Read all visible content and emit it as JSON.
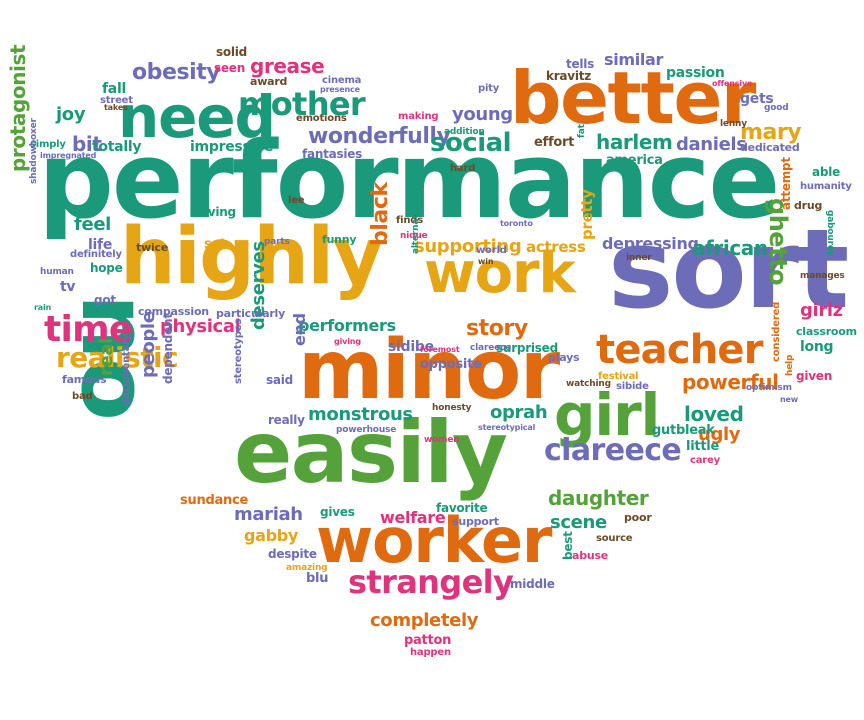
{
  "palette": {
    "teal": "#1a9a7a",
    "orange": "#e06a10",
    "gold": "#e6a514",
    "purple": "#6d6cb8",
    "green": "#55a23a",
    "magenta": "#e0337e",
    "brown": "#6b4a2a",
    "gray": "#555555"
  },
  "words": [
    {
      "text": "performance",
      "color": "teal"
    },
    {
      "text": "sort",
      "color": "purple"
    },
    {
      "text": "highly",
      "color": "gold"
    },
    {
      "text": "minor",
      "color": "orange"
    },
    {
      "text": "easily",
      "color": "green"
    },
    {
      "text": "better",
      "color": "orange"
    },
    {
      "text": "worker",
      "color": "orange"
    },
    {
      "text": "no",
      "color": "teal"
    },
    {
      "text": "need",
      "color": "teal"
    },
    {
      "text": "work",
      "color": "gold"
    },
    {
      "text": "girl",
      "color": "green"
    },
    {
      "text": "teacher",
      "color": "orange"
    },
    {
      "text": "time",
      "color": "magenta"
    },
    {
      "text": "mother",
      "color": "teal"
    },
    {
      "text": "strangely",
      "color": "magenta"
    },
    {
      "text": "clareece",
      "color": "purple"
    },
    {
      "text": "realistic",
      "color": "gold"
    },
    {
      "text": "wonderfully",
      "color": "purple"
    },
    {
      "text": "obesity",
      "color": "purple"
    },
    {
      "text": "grease",
      "color": "magenta"
    },
    {
      "text": "harlem",
      "color": "teal"
    },
    {
      "text": "daniels",
      "color": "purple"
    },
    {
      "text": "mary",
      "color": "gold"
    },
    {
      "text": "social",
      "color": "teal"
    },
    {
      "text": "young",
      "color": "purple"
    },
    {
      "text": "protagonist",
      "color": "green"
    },
    {
      "text": "ghetto",
      "color": "green"
    },
    {
      "text": "supporting",
      "color": "gold"
    },
    {
      "text": "depressing",
      "color": "purple"
    },
    {
      "text": "african",
      "color": "teal"
    },
    {
      "text": "black",
      "color": "orange"
    },
    {
      "text": "story",
      "color": "orange"
    },
    {
      "text": "performers",
      "color": "teal"
    },
    {
      "text": "sidibe",
      "color": "purple"
    },
    {
      "text": "physical",
      "color": "magenta"
    },
    {
      "text": "deserves",
      "color": "teal"
    },
    {
      "text": "end",
      "color": "purple"
    },
    {
      "text": "monstrous",
      "color": "teal"
    },
    {
      "text": "oprah",
      "color": "teal"
    },
    {
      "text": "powerful",
      "color": "orange"
    },
    {
      "text": "loved",
      "color": "teal"
    },
    {
      "text": "people",
      "color": "purple"
    },
    {
      "text": "real",
      "color": "green"
    },
    {
      "text": "daughter",
      "color": "green"
    },
    {
      "text": "scene",
      "color": "teal"
    },
    {
      "text": "welfare",
      "color": "magenta"
    },
    {
      "text": "mariah",
      "color": "purple"
    },
    {
      "text": "gabby",
      "color": "gold"
    },
    {
      "text": "completely",
      "color": "orange"
    },
    {
      "text": "ugly",
      "color": "orange"
    },
    {
      "text": "girlz",
      "color": "magenta"
    },
    {
      "text": "feel",
      "color": "teal"
    },
    {
      "text": "joy",
      "color": "teal"
    },
    {
      "text": "bit",
      "color": "purple"
    },
    {
      "text": "totally",
      "color": "teal"
    },
    {
      "text": "impressive",
      "color": "teal"
    },
    {
      "text": "fall",
      "color": "teal"
    },
    {
      "text": "seen",
      "color": "magenta"
    },
    {
      "text": "solid",
      "color": "brown"
    },
    {
      "text": "similar",
      "color": "purple"
    },
    {
      "text": "tells",
      "color": "purple"
    },
    {
      "text": "kravitz",
      "color": "brown"
    },
    {
      "text": "passion",
      "color": "teal"
    },
    {
      "text": "gets",
      "color": "purple"
    },
    {
      "text": "effort",
      "color": "brown"
    },
    {
      "text": "america",
      "color": "teal"
    },
    {
      "text": "dedicated",
      "color": "purple"
    },
    {
      "text": "able",
      "color": "teal"
    },
    {
      "text": "attempt",
      "color": "orange"
    },
    {
      "text": "life",
      "color": "purple"
    },
    {
      "text": "twice",
      "color": "brown"
    },
    {
      "text": "set",
      "color": "gold"
    },
    {
      "text": "funny",
      "color": "teal"
    },
    {
      "text": "actress",
      "color": "gold"
    },
    {
      "text": "pretty",
      "color": "gold"
    },
    {
      "text": "hope",
      "color": "teal"
    },
    {
      "text": "tv",
      "color": "purple"
    },
    {
      "text": "got",
      "color": "purple"
    },
    {
      "text": "compassion",
      "color": "purple"
    },
    {
      "text": "particularly",
      "color": "purple"
    },
    {
      "text": "opposite",
      "color": "purple"
    },
    {
      "text": "surprised",
      "color": "teal"
    },
    {
      "text": "plays",
      "color": "purple"
    },
    {
      "text": "said",
      "color": "purple"
    },
    {
      "text": "really",
      "color": "purple"
    },
    {
      "text": "classroom",
      "color": "teal"
    },
    {
      "text": "long",
      "color": "teal"
    },
    {
      "text": "given",
      "color": "magenta"
    },
    {
      "text": "considered",
      "color": "orange"
    },
    {
      "text": "festival",
      "color": "gold"
    },
    {
      "text": "sibide",
      "color": "purple"
    },
    {
      "text": "famous",
      "color": "purple"
    },
    {
      "text": "bad",
      "color": "brown"
    },
    {
      "text": "documentary",
      "color": "purple"
    },
    {
      "text": "dependent",
      "color": "purple"
    },
    {
      "text": "stereotypes",
      "color": "purple"
    },
    {
      "text": "little",
      "color": "teal"
    },
    {
      "text": "carey",
      "color": "magenta"
    },
    {
      "text": "gut",
      "color": "teal"
    },
    {
      "text": "bleak",
      "color": "teal"
    },
    {
      "text": "sundance",
      "color": "orange"
    },
    {
      "text": "gives",
      "color": "teal"
    },
    {
      "text": "favorite",
      "color": "teal"
    },
    {
      "text": "support",
      "color": "purple"
    },
    {
      "text": "poor",
      "color": "brown"
    },
    {
      "text": "source",
      "color": "brown"
    },
    {
      "text": "abuse",
      "color": "magenta"
    },
    {
      "text": "best",
      "color": "teal"
    },
    {
      "text": "despite",
      "color": "purple"
    },
    {
      "text": "blu",
      "color": "purple"
    },
    {
      "text": "middle",
      "color": "purple"
    },
    {
      "text": "patton",
      "color": "magenta"
    },
    {
      "text": "happen",
      "color": "magenta"
    },
    {
      "text": "award",
      "color": "brown"
    },
    {
      "text": "street",
      "color": "purple"
    },
    {
      "text": "takes",
      "color": "brown"
    },
    {
      "text": "cinema",
      "color": "purple"
    },
    {
      "text": "presence",
      "color": "purple"
    },
    {
      "text": "emotions",
      "color": "brown"
    },
    {
      "text": "making",
      "color": "magenta"
    },
    {
      "text": "pity",
      "color": "purple"
    },
    {
      "text": "addition",
      "color": "teal"
    },
    {
      "text": "fantasies",
      "color": "purple"
    },
    {
      "text": "hard",
      "color": "brown"
    },
    {
      "text": "lenny",
      "color": "brown"
    },
    {
      "text": "good",
      "color": "purple"
    },
    {
      "text": "offensive",
      "color": "magenta"
    },
    {
      "text": "fat",
      "color": "teal"
    },
    {
      "text": "role",
      "color": "orange"
    },
    {
      "text": "simply",
      "color": "teal"
    },
    {
      "text": "impregnated",
      "color": "purple"
    },
    {
      "text": "shadowboxer",
      "color": "purple"
    },
    {
      "text": "living",
      "color": "teal"
    },
    {
      "text": "lee",
      "color": "brown"
    },
    {
      "text": "finds",
      "color": "brown"
    },
    {
      "text": "toronto",
      "color": "purple"
    },
    {
      "text": "humanity",
      "color": "purple"
    },
    {
      "text": "drug",
      "color": "brown"
    },
    {
      "text": "gabourey",
      "color": "teal"
    },
    {
      "text": "definitely",
      "color": "purple"
    },
    {
      "text": "human",
      "color": "purple"
    },
    {
      "text": "parts",
      "color": "purple"
    },
    {
      "text": "nique",
      "color": "magenta"
    },
    {
      "text": "alternative",
      "color": "teal"
    },
    {
      "text": "world",
      "color": "purple"
    },
    {
      "text": "win",
      "color": "brown"
    },
    {
      "text": "inner",
      "color": "brown"
    },
    {
      "text": "manages",
      "color": "brown"
    },
    {
      "text": "rain",
      "color": "teal"
    },
    {
      "text": "giving",
      "color": "magenta"
    },
    {
      "text": "clareece",
      "color": "purple"
    },
    {
      "text": "foremost",
      "color": "magenta"
    },
    {
      "text": "watching",
      "color": "brown"
    },
    {
      "text": "optimism",
      "color": "purple"
    },
    {
      "text": "new",
      "color": "purple"
    },
    {
      "text": "help",
      "color": "orange"
    },
    {
      "text": "honesty",
      "color": "brown"
    },
    {
      "text": "powerhouse",
      "color": "purple"
    },
    {
      "text": "women",
      "color": "magenta"
    },
    {
      "text": "stereotypical",
      "color": "purple"
    },
    {
      "text": "amazing",
      "color": "gold"
    }
  ]
}
